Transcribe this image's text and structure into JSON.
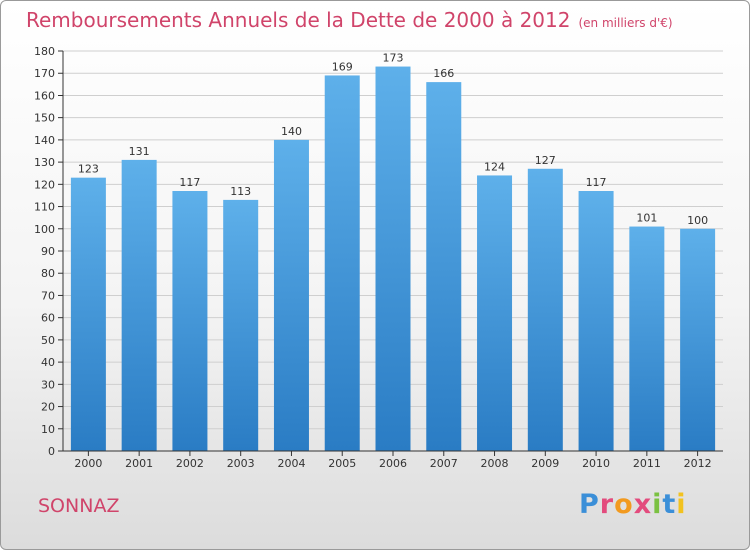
{
  "header": {
    "title": "Remboursements Annuels de la Dette de 2000 à 2012",
    "unit": "(en milliers d'€)"
  },
  "footer": {
    "commune": "SONNAZ",
    "logo_text": "Proxiti"
  },
  "colors": {
    "title": "#d0446a",
    "bar_top": "#5eb0ea",
    "bar_bottom": "#2a7cc4",
    "grid": "#cfcfcf",
    "axis": "#333333"
  },
  "chart_data": {
    "type": "bar",
    "title": "Remboursements Annuels de la Dette de 2000 à 2012",
    "subtitle": "(en milliers d'€)",
    "xlabel": "",
    "ylabel": "",
    "categories": [
      "2000",
      "2001",
      "2002",
      "2003",
      "2004",
      "2005",
      "2006",
      "2007",
      "2008",
      "2009",
      "2010",
      "2011",
      "2012"
    ],
    "values": [
      123,
      131,
      117,
      113,
      140,
      169,
      173,
      166,
      124,
      127,
      117,
      101,
      100
    ],
    "ylim": [
      0,
      180
    ],
    "ytick_step": 10,
    "grid": true,
    "data_labels": true
  }
}
